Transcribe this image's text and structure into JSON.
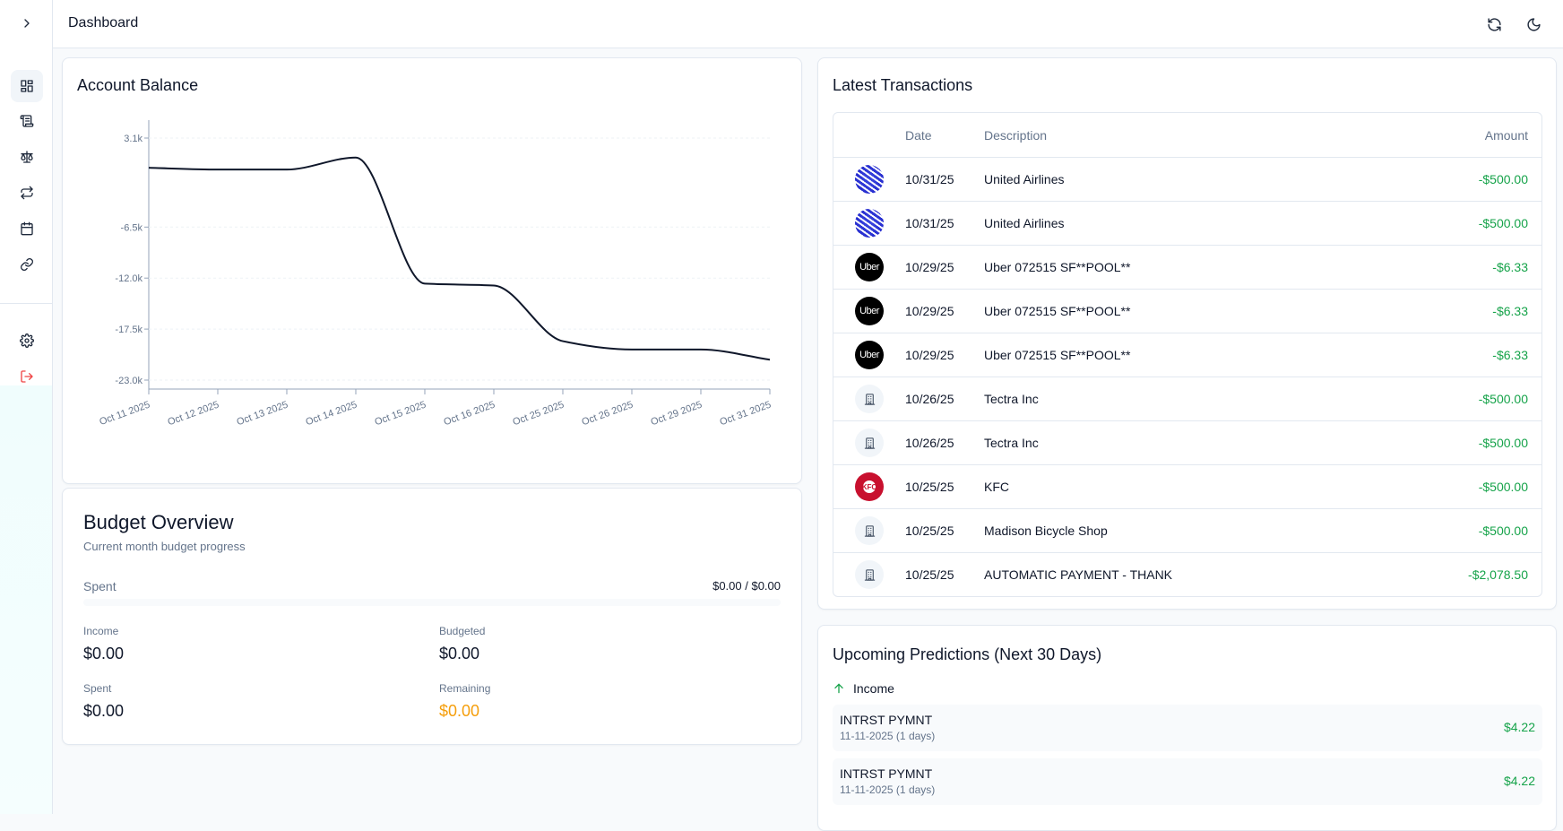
{
  "header": {
    "title": "Dashboard",
    "refresh_icon": "refresh-icon",
    "theme_icon": "moon-icon"
  },
  "sidebar": {
    "items": [
      {
        "name": "dashboard",
        "icon": "grid-icon",
        "active": true
      },
      {
        "name": "transactions",
        "icon": "scroll-icon"
      },
      {
        "name": "budgets",
        "icon": "scale-icon"
      },
      {
        "name": "recurring",
        "icon": "repeat-icon"
      },
      {
        "name": "calendar",
        "icon": "calendar-icon"
      },
      {
        "name": "connections",
        "icon": "link-icon"
      }
    ],
    "bottom": [
      {
        "name": "settings",
        "icon": "gear-icon"
      },
      {
        "name": "logout",
        "icon": "logout-icon",
        "color": "#ef4444"
      }
    ]
  },
  "account_balance": {
    "title": "Account Balance",
    "chart_data": {
      "type": "line",
      "categories": [
        "Oct 11 2025",
        "Oct 12 2025",
        "Oct 13 2025",
        "Oct 14 2025",
        "Oct 15 2025",
        "Oct 16 2025",
        "Oct 25 2025",
        "Oct 26 2025",
        "Oct 29 2025",
        "Oct 31 2025"
      ],
      "values": [
        -0.1,
        -0.3,
        -0.3,
        1.0,
        -12.6,
        -12.8,
        -18.8,
        -19.7,
        -19.7,
        -20.8
      ],
      "y_ticks": [
        "3.1k",
        "-6.5k",
        "-12.0k",
        "-17.5k",
        "-23.0k"
      ],
      "y_tick_values": [
        3.1,
        -6.5,
        -12.0,
        -17.5,
        -23.0
      ],
      "ylim": [
        -23.0,
        3.1
      ],
      "unit": "k",
      "grid": "horizontal dashed",
      "line_color": "#0f172a"
    }
  },
  "budget": {
    "title": "Budget Overview",
    "subtitle": "Current month budget progress",
    "spent_label": "Spent",
    "spent_ratio": "$0.00 / $0.00",
    "progress": 0,
    "income_label": "Income",
    "income": "$0.00",
    "budgeted_label": "Budgeted",
    "budgeted": "$0.00",
    "spent2_label": "Spent",
    "spent": "$0.00",
    "remaining_label": "Remaining",
    "remaining": "$0.00",
    "remaining_color": "#f59e0b"
  },
  "transactions": {
    "title": "Latest Transactions",
    "columns": [
      "Date",
      "Description",
      "Amount"
    ],
    "rows": [
      {
        "logo": "united",
        "date": "10/31/25",
        "description": "United Airlines",
        "amount": "-$500.00"
      },
      {
        "logo": "united",
        "date": "10/31/25",
        "description": "United Airlines",
        "amount": "-$500.00"
      },
      {
        "logo": "uber",
        "logo_text": "Uber",
        "date": "10/29/25",
        "description": "Uber 072515 SF**POOL**",
        "amount": "-$6.33"
      },
      {
        "logo": "uber",
        "logo_text": "Uber",
        "date": "10/29/25",
        "description": "Uber 072515 SF**POOL**",
        "amount": "-$6.33"
      },
      {
        "logo": "uber",
        "logo_text": "Uber",
        "date": "10/29/25",
        "description": "Uber 072515 SF**POOL**",
        "amount": "-$6.33"
      },
      {
        "logo": "building",
        "date": "10/26/25",
        "description": "Tectra Inc",
        "amount": "-$500.00"
      },
      {
        "logo": "building",
        "date": "10/26/25",
        "description": "Tectra Inc",
        "amount": "-$500.00"
      },
      {
        "logo": "kfc",
        "logo_text": "KFC",
        "date": "10/25/25",
        "description": "KFC",
        "amount": "-$500.00"
      },
      {
        "logo": "building",
        "date": "10/25/25",
        "description": "Madison Bicycle Shop",
        "amount": "-$500.00"
      },
      {
        "logo": "building",
        "date": "10/25/25",
        "description": "AUTOMATIC PAYMENT - THANK",
        "amount": "-$2,078.50"
      }
    ],
    "amount_color": "#16a34a"
  },
  "predictions": {
    "title": "Upcoming Predictions (Next 30 Days)",
    "income_label": "Income",
    "items": [
      {
        "name": "INTRST PYMNT",
        "date": "11-11-2025 (1 days)",
        "amount": "$4.22"
      },
      {
        "name": "INTRST PYMNT",
        "date": "11-11-2025 (1 days)",
        "amount": "$4.22"
      }
    ]
  }
}
